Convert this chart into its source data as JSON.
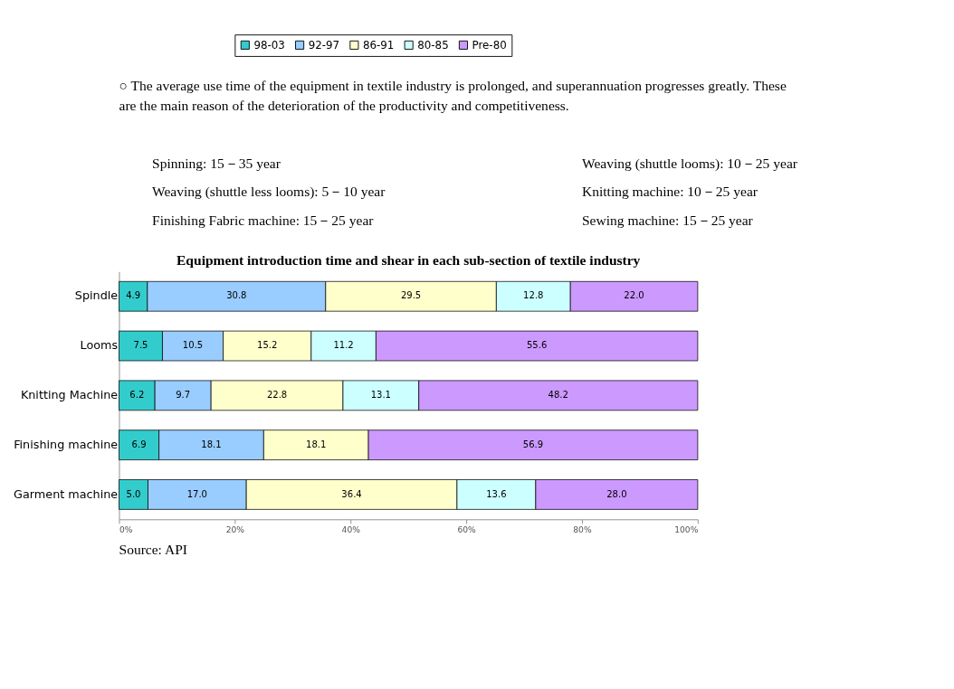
{
  "chart_data": {
    "type": "bar",
    "orientation": "horizontal",
    "stacked": true,
    "title": "Equipment introduction time and shear in each sub-section of textile industry",
    "annotations": [
      "○ The average use time of the equipment in textile industry is prolonged, and superannuation progresses greatly.   These are the main reason of the deterioration of the productivity and competitiveness.",
      "Spinning:   15－35 year",
      "Weaving (shuttle looms):   10－25 year",
      "Weaving (shuttle less looms):   5－10 year",
      "Knitting machine:   10－25 year",
      "Finishing Fabric machine:   15－25 year",
      "Sewing machine:   15－25 year",
      "Source: API"
    ],
    "categories": [
      "Spindle",
      "Looms",
      "Knitting Machine",
      "Finishing machine",
      "Garment machine"
    ],
    "series": [
      {
        "name": "98-03",
        "color": "#33cccc",
        "values": [
          4.9,
          7.5,
          6.2,
          6.9,
          5.0
        ],
        "value_labels": [
          "4.9",
          "7.5",
          "6.2",
          "6.9",
          "5.0"
        ]
      },
      {
        "name": "92-97",
        "color": "#99ccff",
        "values": [
          30.8,
          10.5,
          9.7,
          18.1,
          17.0
        ],
        "value_labels": [
          "30.8",
          "10.5",
          "9.7",
          "18.1",
          "17.0"
        ]
      },
      {
        "name": "86-91",
        "color": "#ffffcc",
        "values": [
          29.5,
          15.2,
          22.8,
          18.1,
          36.4
        ],
        "value_labels": [
          "29.5",
          "15.2",
          "22.8",
          "18.1",
          "36.4"
        ]
      },
      {
        "name": "80-85",
        "color": "#ccffff",
        "values": [
          12.8,
          11.2,
          13.1,
          null,
          13.6
        ],
        "value_labels": [
          "12.8",
          "11.2",
          "13.1",
          null,
          "13.6"
        ]
      },
      {
        "name": "Pre-80",
        "color": "#cc99ff",
        "values": [
          22.0,
          55.6,
          48.2,
          56.9,
          28.0
        ],
        "value_labels": [
          "22.0",
          "55.6",
          "48.2",
          "56.9",
          "28.0"
        ]
      }
    ],
    "xlim": [
      0,
      100
    ],
    "xticks": [
      {
        "value": 0,
        "label": "0%"
      },
      {
        "value": 20,
        "label": "20%"
      },
      {
        "value": 40,
        "label": "40%"
      },
      {
        "value": 60,
        "label": "60%"
      },
      {
        "value": 80,
        "label": "80%"
      },
      {
        "value": 100,
        "label": "100%"
      }
    ],
    "legend": "top",
    "grid": false
  }
}
